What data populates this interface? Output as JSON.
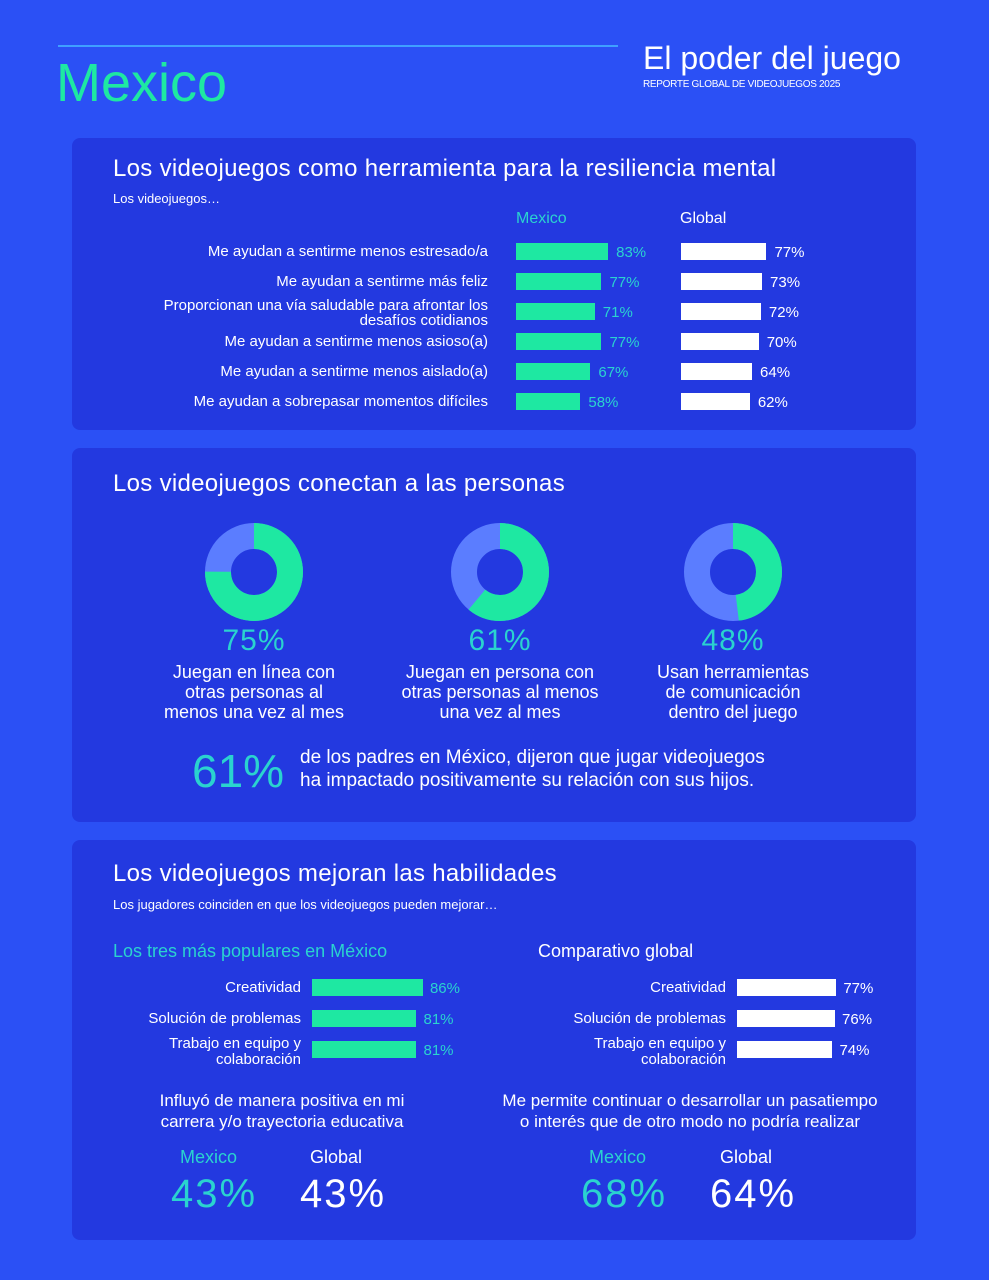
{
  "header": {
    "country": "Mexico",
    "title": "El poder del juego",
    "subtitle": "REPORTE GLOBAL DE VIDEOJUEGOS 2025"
  },
  "colors": {
    "background": "#2b50f5",
    "panel": "#2339e0",
    "mexico": "#1ee8a2",
    "global": "#ffffff",
    "donut_rest": "#5b7dff",
    "accent_text": "#2ad3cf"
  },
  "section1": {
    "title": "Los videojuegos como herramienta para la resiliencia mental",
    "subtitle": "Los videojuegos…",
    "col_mexico": "Mexico",
    "col_global": "Global"
  },
  "section2": {
    "title": "Los videojuegos conectan a las personas",
    "callout_value": "61%",
    "callout_text_1": "de los padres en México, dijeron que jugar videojuegos",
    "callout_text_2": "ha impactado positivamente su relación con sus hijos."
  },
  "section3": {
    "title": "Los videojuegos mejoran las habilidades",
    "subtitle": "Los jugadores coinciden en que los videojuegos pueden mejorar…",
    "left_heading": "Los tres más populares en México",
    "right_heading": "Comparativo global",
    "stat1": {
      "text_1": "Influyó de manera positiva en mi",
      "text_2": "carrera y/o trayectoria educativa",
      "mexico_label": "Mexico",
      "global_label": "Global",
      "mexico_value": "43%",
      "global_value": "43%"
    },
    "stat2": {
      "text_1": "Me permite continuar o desarrollar un pasatiempo",
      "text_2": "o interés que de otro modo no podría realizar",
      "mexico_label": "Mexico",
      "global_label": "Global",
      "mexico_value": "68%",
      "global_value": "64%"
    }
  },
  "chart_data": [
    {
      "type": "bar",
      "orientation": "horizontal",
      "categories": [
        "Me ayudan a sentirme menos estresado/a",
        "Me ayudan a sentirme más feliz",
        "Proporcionan una vía saludable para afrontar los desafíos cotidianos",
        "Me ayudan a sentirme menos asioso(a)",
        "Me ayudan a sentirme menos aislado(a)",
        "Me ayudan a sobrepasar momentos difíciles"
      ],
      "series": [
        {
          "name": "Mexico",
          "values": [
            83,
            77,
            71,
            77,
            67,
            58
          ]
        },
        {
          "name": "Global",
          "values": [
            77,
            73,
            72,
            70,
            64,
            62
          ]
        }
      ]
    },
    {
      "type": "pie",
      "donut": true,
      "items": [
        {
          "value": 75,
          "label": "75%",
          "text": [
            "Juegan en línea con",
            "otras personas al",
            "menos una vez al mes"
          ]
        },
        {
          "value": 61,
          "label": "61%",
          "text": [
            "Juegan en persona con",
            "otras personas al menos",
            "una vez al mes"
          ]
        },
        {
          "value": 48,
          "label": "48%",
          "text": [
            "Usan herramientas",
            "de comunicación",
            "dentro del juego"
          ]
        }
      ]
    },
    {
      "type": "bar",
      "orientation": "horizontal",
      "title": "Los tres más populares en México",
      "categories": [
        "Creatividad",
        "Solución de problemas",
        "Trabajo en equipo y colaboración"
      ],
      "series": [
        {
          "name": "Mexico",
          "values": [
            86,
            81,
            81
          ]
        }
      ]
    },
    {
      "type": "bar",
      "orientation": "horizontal",
      "title": "Comparativo global",
      "categories": [
        "Creatividad",
        "Solución de problemas",
        "Trabajo en equipo y colaboración"
      ],
      "series": [
        {
          "name": "Global",
          "values": [
            77,
            76,
            74
          ]
        }
      ]
    }
  ]
}
